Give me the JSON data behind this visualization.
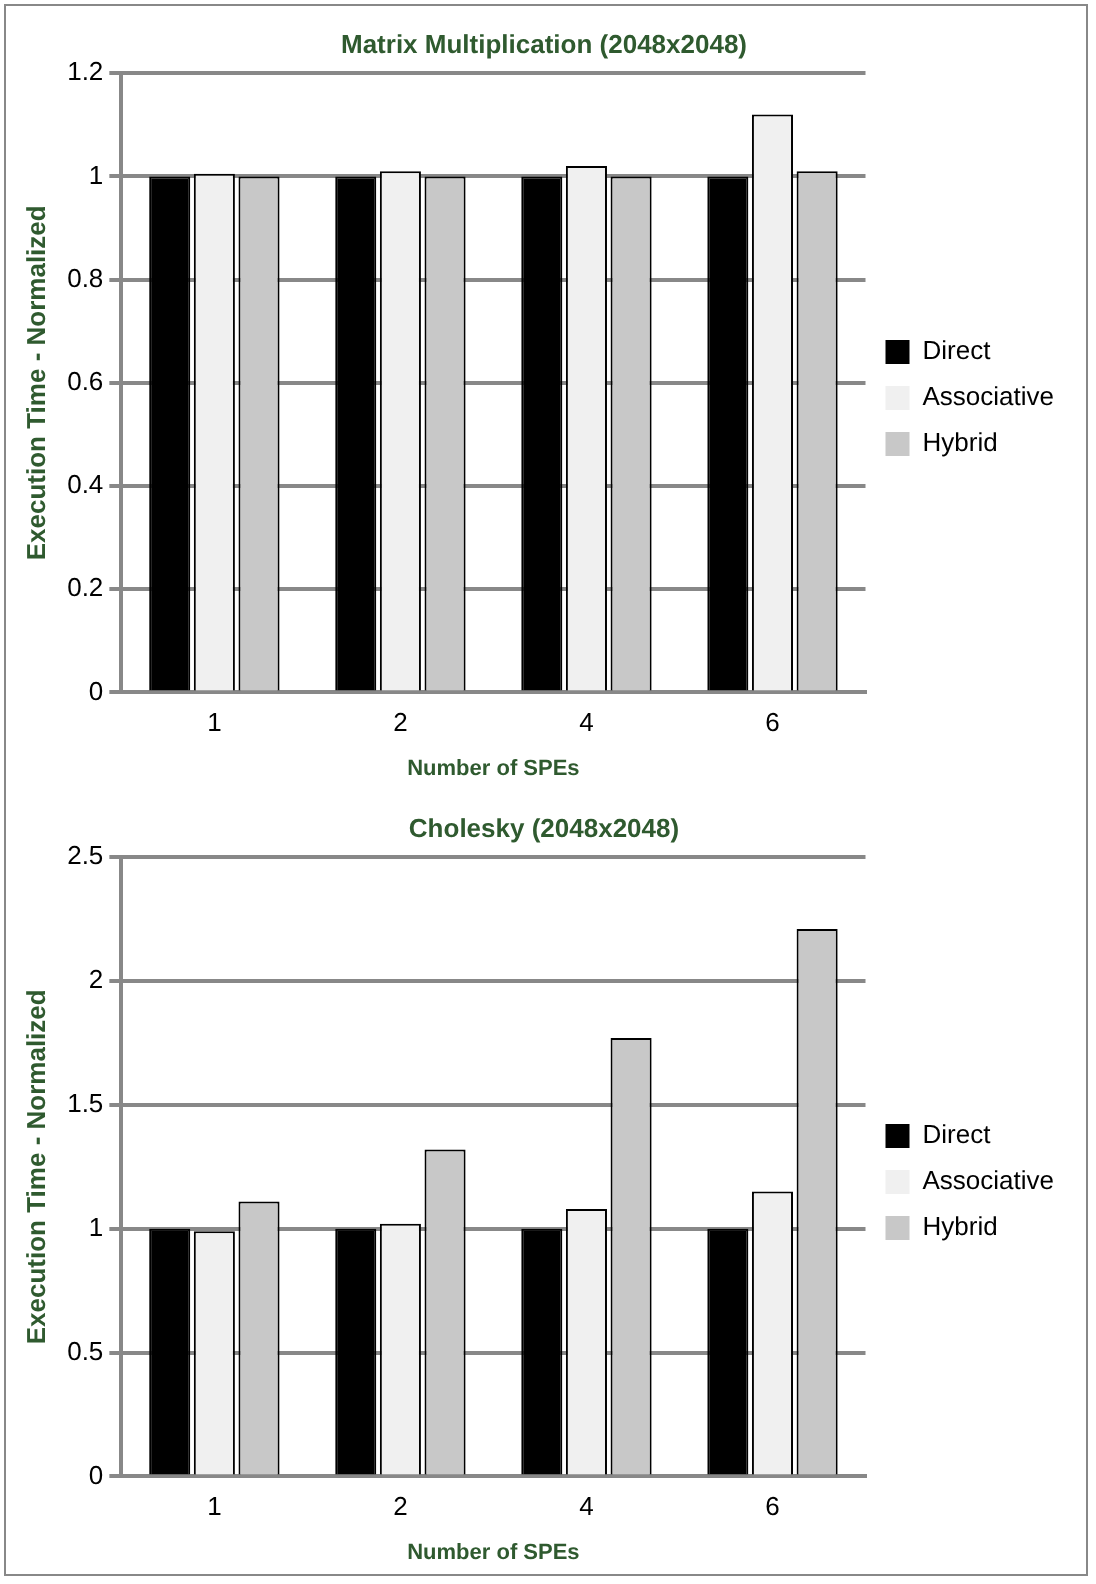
{
  "chart_data": [
    {
      "type": "bar",
      "title": "Matrix Multiplication (2048x2048)",
      "xlabel": "Number of SPEs",
      "ylabel": "Execution Time - Normalized",
      "categories": [
        "1",
        "2",
        "4",
        "6"
      ],
      "ylim": [
        0,
        1.2
      ],
      "yticks": [
        0,
        0.2,
        0.4,
        0.6,
        0.8,
        1,
        1.2
      ],
      "grid": "y",
      "legend": "right",
      "series": [
        {
          "name": "Direct",
          "color": "#000000",
          "values": [
            1,
            1,
            1,
            1
          ]
        },
        {
          "name": "Associative",
          "color": "#f0f0f0",
          "values": [
            1.005,
            1.01,
            1.02,
            1.12
          ]
        },
        {
          "name": "Hybrid",
          "color": "#c8c8c8",
          "values": [
            1,
            1,
            1,
            1.01
          ]
        }
      ]
    },
    {
      "type": "bar",
      "title": "Cholesky (2048x2048)",
      "xlabel": "Number of SPEs",
      "ylabel": "Execution Time - Normalized",
      "categories": [
        "1",
        "2",
        "4",
        "6"
      ],
      "ylim": [
        0,
        2.5
      ],
      "yticks": [
        0,
        0.5,
        1,
        1.5,
        2,
        2.5
      ],
      "grid": "y",
      "legend": "right",
      "series": [
        {
          "name": "Direct",
          "color": "#000000",
          "values": [
            1,
            1,
            1,
            1
          ]
        },
        {
          "name": "Associative",
          "color": "#f0f0f0",
          "values": [
            0.99,
            1.02,
            1.08,
            1.15
          ]
        },
        {
          "name": "Hybrid",
          "color": "#c8c8c8",
          "values": [
            1.11,
            1.32,
            1.77,
            2.21
          ]
        }
      ]
    }
  ]
}
